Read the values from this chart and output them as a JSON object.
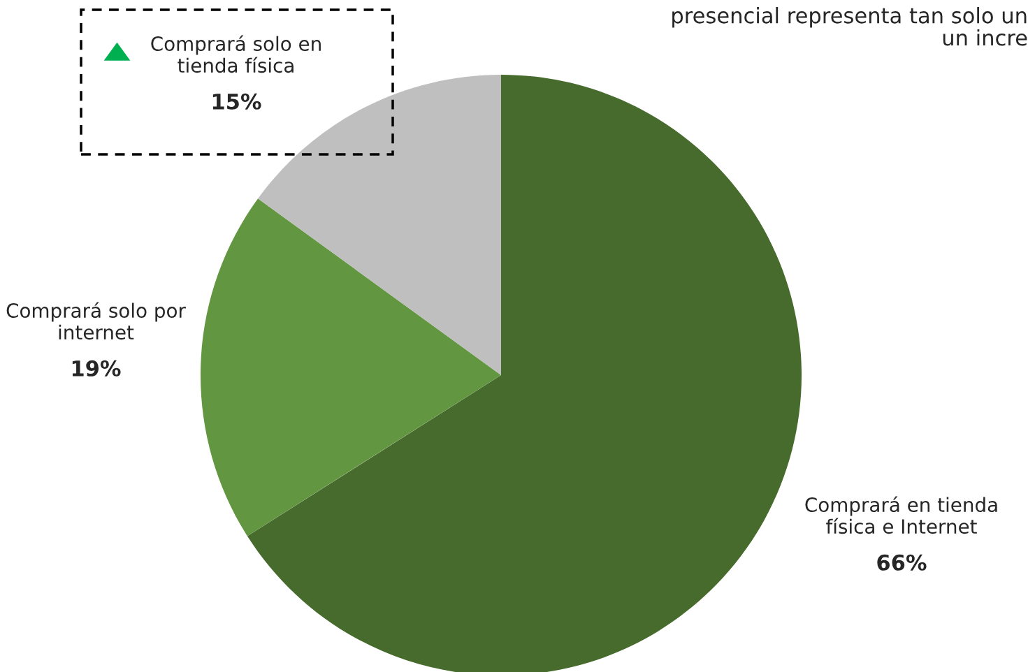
{
  "chart_data": {
    "type": "pie",
    "categories": [
      "Comprará en tienda física e Internet",
      "Comprará solo por internet",
      "Comprará solo en tienda física"
    ],
    "values": [
      66,
      19,
      15
    ],
    "colors": [
      "#466b2c",
      "#639640",
      "#bfbfbf"
    ],
    "value_labels": [
      "66%",
      "19%",
      "15%"
    ],
    "annotations": [
      "presencial representa tan solo un\nun incre"
    ],
    "legend": false
  }
}
